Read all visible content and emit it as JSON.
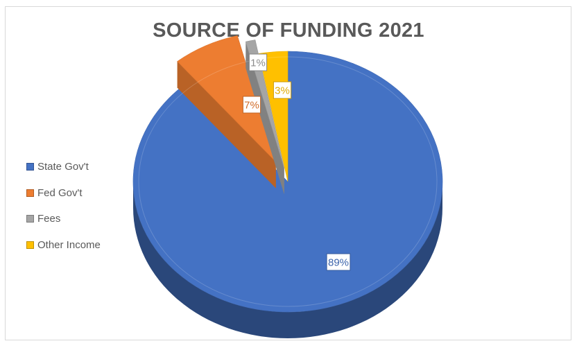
{
  "chart_data": {
    "type": "pie",
    "title": "SOURCE OF FUNDING 2021",
    "categories": [
      "State Gov't",
      "Fed Gov't",
      "Fees",
      "Other Income"
    ],
    "values": [
      89,
      7,
      1,
      3
    ],
    "data_labels": [
      "89%",
      "7%",
      "1%",
      "3%"
    ],
    "colors": [
      "#4472C4",
      "#ED7D31",
      "#A5A5A5",
      "#FFC000"
    ],
    "legend_position": "left",
    "style": "3d-exploded"
  }
}
